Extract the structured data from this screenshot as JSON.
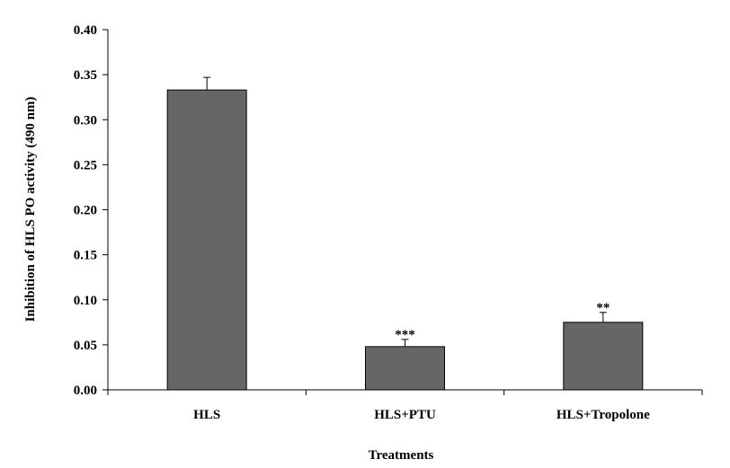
{
  "chart_data": {
    "type": "bar",
    "categories": [
      "HLS",
      "HLS+PTU",
      "HLS+Tropolone"
    ],
    "values": [
      0.333,
      0.048,
      0.075
    ],
    "errors": [
      0.014,
      0.008,
      0.011
    ],
    "annotations": [
      "",
      "***",
      "**"
    ],
    "xlabel": "Treatments",
    "ylabel": "Inhibition  of HLS PO activity (490 nm)",
    "ylim": [
      0,
      0.4
    ],
    "yticks": [
      "0.00",
      "0.05",
      "0.10",
      "0.15",
      "0.20",
      "0.25",
      "0.30",
      "0.35",
      "0.40"
    ],
    "bar_color": "#666666",
    "grid": false,
    "legend": "none"
  }
}
